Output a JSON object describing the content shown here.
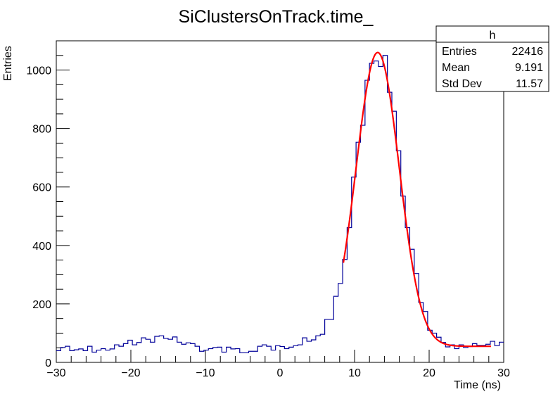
{
  "chart_data": {
    "type": "histogram",
    "title": "SiClustersOnTrack.time_",
    "xlabel": "Time (ns)",
    "ylabel": "Entries",
    "xlim": [
      -30,
      30
    ],
    "ylim": [
      0,
      1100
    ],
    "x_ticks": [
      -30,
      -20,
      -10,
      0,
      10,
      20,
      30
    ],
    "y_ticks": [
      0,
      200,
      400,
      600,
      800,
      1000
    ],
    "bins": 100,
    "values": [
      40,
      51,
      55,
      40,
      43,
      46,
      40,
      55,
      35,
      42,
      47,
      42,
      46,
      60,
      55,
      64,
      76,
      60,
      68,
      84,
      79,
      69,
      89,
      91,
      82,
      79,
      87,
      69,
      62,
      67,
      64,
      55,
      38,
      42,
      47,
      51,
      52,
      35,
      52,
      46,
      47,
      33,
      33,
      38,
      38,
      55,
      60,
      55,
      42,
      57,
      54,
      47,
      52,
      57,
      60,
      84,
      72,
      77,
      91,
      96,
      147,
      147,
      226,
      270,
      352,
      461,
      634,
      753,
      811,
      965,
      1023,
      1031,
      1012,
      1050,
      924,
      859,
      724,
      569,
      461,
      387,
      304,
      205,
      174,
      110,
      100,
      86,
      68,
      53,
      60,
      47,
      60,
      51,
      54,
      64,
      58,
      58,
      62,
      72,
      57,
      69
    ],
    "histogram_color": "#000099",
    "fit": {
      "color": "#ff0000",
      "range": [
        8.5,
        28.3
      ],
      "constant": 55,
      "amplitude": 1005,
      "mean": 13.1,
      "sigma": 2.9
    },
    "stats_box": {
      "name": "h",
      "rows": [
        {
          "label": "Entries",
          "value": "22416"
        },
        {
          "label": "Mean",
          "value": "9.191"
        },
        {
          "label": "Std Dev",
          "value": "11.57"
        }
      ]
    }
  }
}
